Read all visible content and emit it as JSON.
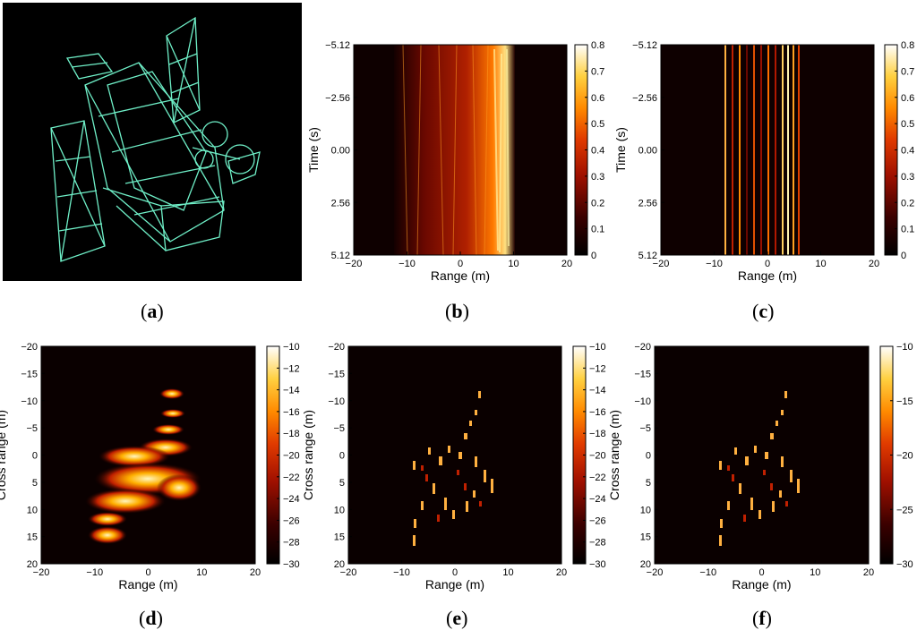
{
  "figure": {
    "panels": [
      {
        "id": "a",
        "caption": "a",
        "type": "wireframe-image",
        "image": "satellite-wireframe",
        "background": "#000000",
        "line_color": "#6ff0c8"
      },
      {
        "id": "b",
        "caption": "b",
        "type": "heatmap",
        "xlabel": "Range (m)",
        "ylabel": "Time (s)",
        "xticks": [
          "−20",
          "−10",
          "0",
          "10",
          "20"
        ],
        "yticks": [
          "−5.12",
          "−2.56",
          "0.00",
          "2.56",
          "5.12"
        ],
        "colorbar_ticks": [
          "0.8",
          "0.7",
          "0.6",
          "0.5",
          "0.4",
          "0.3",
          "0.2",
          "0.1",
          "0"
        ],
        "pattern": "smeared-band"
      },
      {
        "id": "c",
        "caption": "c",
        "type": "heatmap",
        "xlabel": "Range (m)",
        "ylabel": "Time (s)",
        "xticks": [
          "−20",
          "−10",
          "0",
          "10",
          "20"
        ],
        "yticks": [
          "−5.12",
          "−2.56",
          "0.00",
          "2.56",
          "5.12"
        ],
        "colorbar_ticks": [
          "0.8",
          "0.7",
          "0.6",
          "0.5",
          "0.4",
          "0.3",
          "0.2",
          "0.1",
          "0"
        ],
        "pattern": "vertical-stripes"
      },
      {
        "id": "d",
        "caption": "d",
        "type": "heatmap",
        "xlabel": "Range (m)",
        "ylabel": "Cross range (m)",
        "xticks": [
          "−20",
          "−10",
          "0",
          "10",
          "20"
        ],
        "yticks": [
          "−20",
          "−15",
          "−10",
          "−5",
          "0",
          "5",
          "10",
          "15",
          "20"
        ],
        "colorbar_ticks": [
          "−10",
          "−12",
          "−14",
          "−16",
          "−18",
          "−20",
          "−22",
          "−24",
          "−26",
          "−28",
          "−30"
        ],
        "pattern": "blurred-isar"
      },
      {
        "id": "e",
        "caption": "e",
        "type": "heatmap",
        "xlabel": "Range (m)",
        "ylabel": "Cross range (m)",
        "xticks": [
          "−20",
          "−10",
          "0",
          "10",
          "20"
        ],
        "yticks": [
          "−20",
          "−15",
          "−10",
          "−5",
          "0",
          "5",
          "10",
          "15",
          "20"
        ],
        "colorbar_ticks": [
          "−10",
          "−12",
          "−14",
          "−16",
          "−18",
          "−20",
          "−22",
          "−24",
          "−26",
          "−28",
          "−30"
        ],
        "pattern": "sparse-isar"
      },
      {
        "id": "f",
        "caption": "f",
        "type": "heatmap",
        "xlabel": "Range (m)",
        "ylabel": "Cross range (m)",
        "xticks": [
          "−20",
          "−10",
          "0",
          "10",
          "20"
        ],
        "yticks": [
          "−20",
          "−15",
          "−10",
          "−5",
          "0",
          "5",
          "10",
          "15",
          "20"
        ],
        "colorbar_ticks": [
          "−10",
          "−15",
          "−20",
          "−25",
          "−30"
        ],
        "pattern": "sparse-isar"
      }
    ],
    "colormap": [
      "#000000",
      "#3a0000",
      "#8a0a00",
      "#d22a00",
      "#ff6a00",
      "#ffb300",
      "#fff070",
      "#ffffff"
    ]
  }
}
